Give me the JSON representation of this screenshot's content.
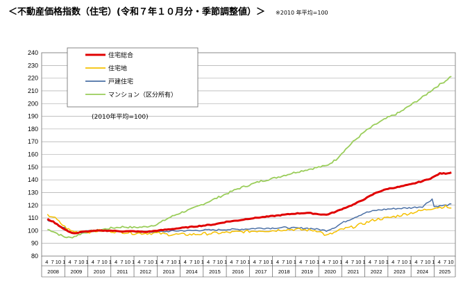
{
  "header": {
    "title": "＜不動産価格指数（住宅）(令和７年１０月分・季節調整値）＞",
    "note": "※2010 年平均=100"
  },
  "chart_data": {
    "type": "line",
    "ylim": [
      80,
      240
    ],
    "yticks": [
      80,
      90,
      100,
      110,
      120,
      130,
      140,
      150,
      160,
      170,
      180,
      190,
      200,
      210,
      220,
      230,
      240
    ],
    "month_tick_labels": [
      "4",
      "7",
      "10",
      "1"
    ],
    "last_year_month_tick_labels": [
      "4",
      "7",
      "10"
    ],
    "years": [
      "2008",
      "2009",
      "2010",
      "2011",
      "2012",
      "2013",
      "2014",
      "2015",
      "2016",
      "2017",
      "2018",
      "2019",
      "2020",
      "2021",
      "2022",
      "2023",
      "2024",
      "2025"
    ],
    "base_note": "(2010年平均=100)",
    "grid": true,
    "legend_position": "top-left",
    "series": [
      {
        "name": "住宅総合",
        "color": "#e00000",
        "width": 3,
        "knots": [
          [
            2008.25,
            109
          ],
          [
            2008.5,
            107
          ],
          [
            2008.75,
            104
          ],
          [
            2009.0,
            101
          ],
          [
            2009.25,
            98.5
          ],
          [
            2009.5,
            98
          ],
          [
            2009.75,
            99
          ],
          [
            2010.0,
            99.5
          ],
          [
            2010.5,
            100
          ],
          [
            2011.0,
            100
          ],
          [
            2011.5,
            99.5
          ],
          [
            2012.0,
            99.5
          ],
          [
            2012.5,
            99
          ],
          [
            2013.0,
            100
          ],
          [
            2013.5,
            101
          ],
          [
            2014.0,
            102
          ],
          [
            2014.5,
            103
          ],
          [
            2015.0,
            104
          ],
          [
            2015.5,
            105
          ],
          [
            2016.0,
            107
          ],
          [
            2016.5,
            108
          ],
          [
            2017.0,
            109.5
          ],
          [
            2017.5,
            110.5
          ],
          [
            2018.0,
            111.5
          ],
          [
            2018.5,
            112.5
          ],
          [
            2019.0,
            113.5
          ],
          [
            2019.5,
            114
          ],
          [
            2020.0,
            113
          ],
          [
            2020.33,
            112.5
          ],
          [
            2020.75,
            115
          ],
          [
            2021.0,
            117
          ],
          [
            2021.5,
            120.5
          ],
          [
            2022.0,
            125
          ],
          [
            2022.5,
            130
          ],
          [
            2023.0,
            133
          ],
          [
            2023.5,
            134.5
          ],
          [
            2024.0,
            136.5
          ],
          [
            2024.5,
            139
          ],
          [
            2024.83,
            141
          ],
          [
            2025.0,
            142.5
          ],
          [
            2025.25,
            145
          ],
          [
            2025.5,
            145
          ],
          [
            2025.83,
            146
          ]
        ],
        "noise": 0.6
      },
      {
        "name": "住宅地",
        "color": "#f5c000",
        "width": 1.5,
        "knots": [
          [
            2008.25,
            112
          ],
          [
            2008.5,
            111
          ],
          [
            2008.75,
            107
          ],
          [
            2009.0,
            103
          ],
          [
            2009.25,
            100
          ],
          [
            2009.5,
            99
          ],
          [
            2009.75,
            100
          ],
          [
            2010.0,
            99
          ],
          [
            2010.5,
            100
          ],
          [
            2011.0,
            99.5
          ],
          [
            2011.5,
            99
          ],
          [
            2012.0,
            98
          ],
          [
            2012.5,
            98
          ],
          [
            2013.0,
            98
          ],
          [
            2013.5,
            97
          ],
          [
            2014.0,
            97
          ],
          [
            2014.5,
            97
          ],
          [
            2015.0,
            97.5
          ],
          [
            2015.5,
            98
          ],
          [
            2016.0,
            98.5
          ],
          [
            2016.5,
            99
          ],
          [
            2017.0,
            99.5
          ],
          [
            2017.5,
            100
          ],
          [
            2018.0,
            100
          ],
          [
            2018.5,
            101
          ],
          [
            2019.0,
            101
          ],
          [
            2019.5,
            100.5
          ],
          [
            2020.0,
            100
          ],
          [
            2020.33,
            96
          ],
          [
            2020.75,
            99
          ],
          [
            2021.0,
            101
          ],
          [
            2021.5,
            103
          ],
          [
            2022.0,
            106
          ],
          [
            2022.5,
            109
          ],
          [
            2023.0,
            110
          ],
          [
            2023.5,
            112
          ],
          [
            2024.0,
            114
          ],
          [
            2024.5,
            116
          ],
          [
            2025.0,
            118
          ],
          [
            2025.5,
            119
          ],
          [
            2025.83,
            117
          ]
        ],
        "noise": 2.2
      },
      {
        "name": "戸建住宅",
        "color": "#4a6fa5",
        "width": 1.5,
        "knots": [
          [
            2008.25,
            108
          ],
          [
            2008.5,
            107
          ],
          [
            2008.75,
            104
          ],
          [
            2009.0,
            102
          ],
          [
            2009.25,
            99
          ],
          [
            2009.5,
            98
          ],
          [
            2009.75,
            99
          ],
          [
            2010.0,
            100
          ],
          [
            2010.5,
            100
          ],
          [
            2011.0,
            100
          ],
          [
            2011.5,
            99
          ],
          [
            2012.0,
            99
          ],
          [
            2012.5,
            99
          ],
          [
            2013.0,
            99
          ],
          [
            2013.5,
            99.5
          ],
          [
            2014.0,
            100
          ],
          [
            2014.5,
            100
          ],
          [
            2015.0,
            100.5
          ],
          [
            2015.5,
            100.5
          ],
          [
            2016.0,
            101
          ],
          [
            2016.5,
            101
          ],
          [
            2017.0,
            101.5
          ],
          [
            2017.5,
            102
          ],
          [
            2018.0,
            102
          ],
          [
            2018.5,
            102.5
          ],
          [
            2019.0,
            102
          ],
          [
            2019.5,
            102
          ],
          [
            2020.0,
            101
          ],
          [
            2020.33,
            100
          ],
          [
            2020.75,
            103
          ],
          [
            2021.0,
            106
          ],
          [
            2021.5,
            110
          ],
          [
            2022.0,
            114
          ],
          [
            2022.5,
            116
          ],
          [
            2023.0,
            117
          ],
          [
            2023.5,
            117.5
          ],
          [
            2024.0,
            118
          ],
          [
            2024.5,
            119
          ],
          [
            2024.92,
            125
          ],
          [
            2025.0,
            119
          ],
          [
            2025.5,
            120
          ],
          [
            2025.83,
            121
          ]
        ],
        "noise": 1.2
      },
      {
        "name": "マンション（区分所有）",
        "color": "#9acd5a",
        "width": 1.8,
        "knots": [
          [
            2008.25,
            101
          ],
          [
            2008.5,
            99.5
          ],
          [
            2008.75,
            97
          ],
          [
            2009.0,
            95
          ],
          [
            2009.25,
            94.5
          ],
          [
            2009.5,
            96
          ],
          [
            2009.75,
            98
          ],
          [
            2010.0,
            99
          ],
          [
            2010.5,
            100.5
          ],
          [
            2011.0,
            102
          ],
          [
            2011.5,
            103
          ],
          [
            2012.0,
            102.5
          ],
          [
            2012.5,
            103
          ],
          [
            2013.0,
            105
          ],
          [
            2013.5,
            110
          ],
          [
            2014.0,
            114
          ],
          [
            2014.5,
            117
          ],
          [
            2015.0,
            121
          ],
          [
            2015.5,
            125
          ],
          [
            2016.0,
            129
          ],
          [
            2016.5,
            133
          ],
          [
            2017.0,
            136
          ],
          [
            2017.5,
            139
          ],
          [
            2018.0,
            141
          ],
          [
            2018.5,
            143.5
          ],
          [
            2019.0,
            146
          ],
          [
            2019.5,
            148
          ],
          [
            2020.0,
            150
          ],
          [
            2020.33,
            151
          ],
          [
            2020.75,
            156
          ],
          [
            2021.0,
            161
          ],
          [
            2021.5,
            170
          ],
          [
            2022.0,
            178
          ],
          [
            2022.5,
            184
          ],
          [
            2023.0,
            189
          ],
          [
            2023.5,
            193
          ],
          [
            2024.0,
            199
          ],
          [
            2024.5,
            205
          ],
          [
            2025.0,
            212
          ],
          [
            2025.5,
            218
          ],
          [
            2025.83,
            223
          ]
        ],
        "noise": 1.5
      }
    ]
  }
}
